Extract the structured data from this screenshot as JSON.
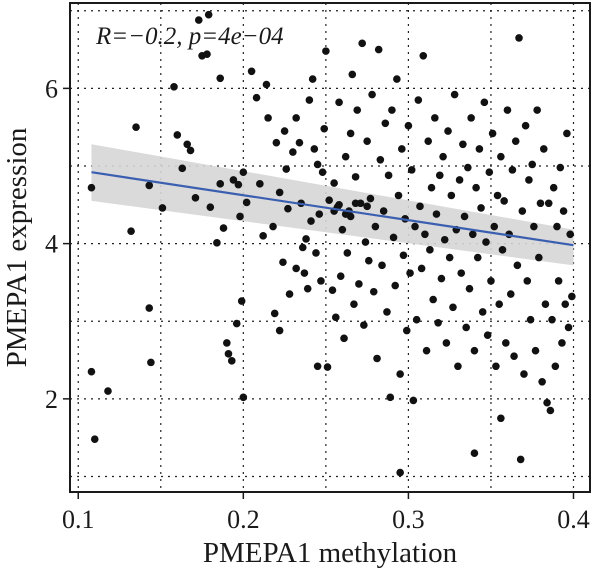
{
  "chart_data": {
    "type": "scatter",
    "title": "",
    "xlabel": "PMEPA1 methylation",
    "ylabel": "PMEPA1 expression",
    "annotation": "R=−0.2, p=4e−04",
    "xlim": [
      0.095,
      0.41
    ],
    "ylim": [
      0.8,
      7.1
    ],
    "xticks": [
      0.1,
      0.2,
      0.3,
      0.4
    ],
    "xtick_labels": [
      "0.1",
      "0.2",
      "0.3",
      "0.4"
    ],
    "yticks": [
      2,
      4,
      6
    ],
    "ytick_labels": [
      "2",
      "4",
      "6"
    ],
    "grid": true,
    "grid_style": "dotted",
    "legend": "none",
    "regression": {
      "x": [
        0.108,
        0.4
      ],
      "y": [
        4.92,
        3.98
      ],
      "ci_upper": [
        5.28,
        4.18
      ],
      "ci_lower": [
        4.55,
        3.72
      ],
      "line_color": "#3b5fb0",
      "band_color": "#d6d6d6"
    },
    "point_color": "#111111",
    "points": [
      [
        0.108,
        2.35
      ],
      [
        0.11,
        1.48
      ],
      [
        0.118,
        2.1
      ],
      [
        0.108,
        4.72
      ],
      [
        0.132,
        4.16
      ],
      [
        0.135,
        5.5
      ],
      [
        0.143,
        4.75
      ],
      [
        0.143,
        3.17
      ],
      [
        0.144,
        2.47
      ],
      [
        0.151,
        4.46
      ],
      [
        0.158,
        6.02
      ],
      [
        0.16,
        5.4
      ],
      [
        0.163,
        4.97
      ],
      [
        0.166,
        5.28
      ],
      [
        0.168,
        5.2
      ],
      [
        0.171,
        4.59
      ],
      [
        0.173,
        6.88
      ],
      [
        0.175,
        6.42
      ],
      [
        0.178,
        6.44
      ],
      [
        0.179,
        6.95
      ],
      [
        0.18,
        4.47
      ],
      [
        0.184,
        4.01
      ],
      [
        0.186,
        6.13
      ],
      [
        0.186,
        4.77
      ],
      [
        0.188,
        4.2
      ],
      [
        0.19,
        2.72
      ],
      [
        0.191,
        2.58
      ],
      [
        0.193,
        2.49
      ],
      [
        0.194,
        4.82
      ],
      [
        0.196,
        2.97
      ],
      [
        0.197,
        4.76
      ],
      [
        0.198,
        4.35
      ],
      [
        0.199,
        3.26
      ],
      [
        0.2,
        2.02
      ],
      [
        0.2,
        4.92
      ],
      [
        0.202,
        4.53
      ],
      [
        0.205,
        6.22
      ],
      [
        0.208,
        5.88
      ],
      [
        0.21,
        4.77
      ],
      [
        0.212,
        4.1
      ],
      [
        0.214,
        6.05
      ],
      [
        0.215,
        5.62
      ],
      [
        0.218,
        4.22
      ],
      [
        0.219,
        3.1
      ],
      [
        0.22,
        5.3
      ],
      [
        0.222,
        2.88
      ],
      [
        0.222,
        4.66
      ],
      [
        0.224,
        3.76
      ],
      [
        0.225,
        5.45
      ],
      [
        0.226,
        4.96
      ],
      [
        0.227,
        4.45
      ],
      [
        0.228,
        3.35
      ],
      [
        0.23,
        5.18
      ],
      [
        0.232,
        5.62
      ],
      [
        0.232,
        3.68
      ],
      [
        0.234,
        5.3
      ],
      [
        0.235,
        4.52
      ],
      [
        0.236,
        3.95
      ],
      [
        0.237,
        3.62
      ],
      [
        0.238,
        4.06
      ],
      [
        0.239,
        3.42
      ],
      [
        0.24,
        5.85
      ],
      [
        0.241,
        4.29
      ],
      [
        0.242,
        6.12
      ],
      [
        0.243,
        5.22
      ],
      [
        0.244,
        3.88
      ],
      [
        0.245,
        5.02
      ],
      [
        0.246,
        4.38
      ],
      [
        0.247,
        3.52
      ],
      [
        0.248,
        4.92
      ],
      [
        0.249,
        5.48
      ],
      [
        0.25,
        6.48
      ],
      [
        0.251,
        2.41
      ],
      [
        0.252,
        4.56
      ],
      [
        0.254,
        3.4
      ],
      [
        0.255,
        4.78
      ],
      [
        0.256,
        3.05
      ],
      [
        0.257,
        4.47
      ],
      [
        0.258,
        5.82
      ],
      [
        0.259,
        3.58
      ],
      [
        0.26,
        4.18
      ],
      [
        0.261,
        2.78
      ],
      [
        0.262,
        5.12
      ],
      [
        0.263,
        3.88
      ],
      [
        0.264,
        4.42
      ],
      [
        0.265,
        5.42
      ],
      [
        0.266,
        6.18
      ],
      [
        0.267,
        3.22
      ],
      [
        0.268,
        4.86
      ],
      [
        0.269,
        5.72
      ],
      [
        0.27,
        3.48
      ],
      [
        0.271,
        4.52
      ],
      [
        0.272,
        6.58
      ],
      [
        0.273,
        2.95
      ],
      [
        0.274,
        4.02
      ],
      [
        0.275,
        5.32
      ],
      [
        0.276,
        3.78
      ],
      [
        0.277,
        4.58
      ],
      [
        0.278,
        5.92
      ],
      [
        0.279,
        3.38
      ],
      [
        0.28,
        4.22
      ],
      [
        0.281,
        2.52
      ],
      [
        0.282,
        6.5
      ],
      [
        0.283,
        5.08
      ],
      [
        0.284,
        3.72
      ],
      [
        0.285,
        4.42
      ],
      [
        0.286,
        5.55
      ],
      [
        0.287,
        3.12
      ],
      [
        0.288,
        4.88
      ],
      [
        0.289,
        2.02
      ],
      [
        0.29,
        5.72
      ],
      [
        0.291,
        4.08
      ],
      [
        0.292,
        3.46
      ],
      [
        0.293,
        6.12
      ],
      [
        0.294,
        4.62
      ],
      [
        0.295,
        2.32
      ],
      [
        0.296,
        5.22
      ],
      [
        0.297,
        3.85
      ],
      [
        0.298,
        4.32
      ],
      [
        0.299,
        2.88
      ],
      [
        0.3,
        5.52
      ],
      [
        0.301,
        3.62
      ],
      [
        0.302,
        4.95
      ],
      [
        0.303,
        1.98
      ],
      [
        0.304,
        4.22
      ],
      [
        0.305,
        3.02
      ],
      [
        0.306,
        5.85
      ],
      [
        0.307,
        4.48
      ],
      [
        0.308,
        3.68
      ],
      [
        0.309,
        6.42
      ],
      [
        0.31,
        4.12
      ],
      [
        0.311,
        2.62
      ],
      [
        0.312,
        5.32
      ],
      [
        0.313,
        3.92
      ],
      [
        0.314,
        4.72
      ],
      [
        0.315,
        3.28
      ],
      [
        0.316,
        5.62
      ],
      [
        0.317,
        4.38
      ],
      [
        0.318,
        2.98
      ],
      [
        0.319,
        4.88
      ],
      [
        0.32,
        3.55
      ],
      [
        0.321,
        5.12
      ],
      [
        0.322,
        4.05
      ],
      [
        0.323,
        2.72
      ],
      [
        0.324,
        5.45
      ],
      [
        0.325,
        3.82
      ],
      [
        0.326,
        4.62
      ],
      [
        0.327,
        3.18
      ],
      [
        0.328,
        5.92
      ],
      [
        0.329,
        4.18
      ],
      [
        0.33,
        2.42
      ],
      [
        0.331,
        4.82
      ],
      [
        0.332,
        3.62
      ],
      [
        0.333,
        5.28
      ],
      [
        0.334,
        4.35
      ],
      [
        0.335,
        2.92
      ],
      [
        0.336,
        4.98
      ],
      [
        0.337,
        3.42
      ],
      [
        0.338,
        5.62
      ],
      [
        0.339,
        4.12
      ],
      [
        0.34,
        2.62
      ],
      [
        0.341,
        4.72
      ],
      [
        0.342,
        3.82
      ],
      [
        0.343,
        5.22
      ],
      [
        0.344,
        4.46
      ],
      [
        0.345,
        3.12
      ],
      [
        0.346,
        5.82
      ],
      [
        0.347,
        4.02
      ],
      [
        0.348,
        2.82
      ],
      [
        0.349,
        4.92
      ],
      [
        0.35,
        3.52
      ],
      [
        0.351,
        5.42
      ],
      [
        0.352,
        4.22
      ],
      [
        0.353,
        2.42
      ],
      [
        0.354,
        4.62
      ],
      [
        0.355,
        3.22
      ],
      [
        0.356,
        5.12
      ],
      [
        0.357,
        3.92
      ],
      [
        0.358,
        4.55
      ],
      [
        0.359,
        2.72
      ],
      [
        0.36,
        5.72
      ],
      [
        0.361,
        4.12
      ],
      [
        0.362,
        3.35
      ],
      [
        0.363,
        4.95
      ],
      [
        0.364,
        2.55
      ],
      [
        0.365,
        5.32
      ],
      [
        0.366,
        3.72
      ],
      [
        0.367,
        6.65
      ],
      [
        0.368,
        1.22
      ],
      [
        0.369,
        4.42
      ],
      [
        0.37,
        2.32
      ],
      [
        0.371,
        5.52
      ],
      [
        0.372,
        3.52
      ],
      [
        0.373,
        4.82
      ],
      [
        0.374,
        3.02
      ],
      [
        0.375,
        5.02
      ],
      [
        0.376,
        4.22
      ],
      [
        0.377,
        2.62
      ],
      [
        0.378,
        5.72
      ],
      [
        0.379,
        3.82
      ],
      [
        0.38,
        4.52
      ],
      [
        0.381,
        2.22
      ],
      [
        0.382,
        5.22
      ],
      [
        0.383,
        3.22
      ],
      [
        0.384,
        1.95
      ],
      [
        0.385,
        4.52
      ],
      [
        0.386,
        1.85
      ],
      [
        0.387,
        3.02
      ],
      [
        0.388,
        4.72
      ],
      [
        0.389,
        2.42
      ],
      [
        0.39,
        4.22
      ],
      [
        0.391,
        3.52
      ],
      [
        0.392,
        4.98
      ],
      [
        0.393,
        2.72
      ],
      [
        0.394,
        4.42
      ],
      [
        0.395,
        3.22
      ],
      [
        0.396,
        5.42
      ],
      [
        0.397,
        2.92
      ],
      [
        0.398,
        4.12
      ],
      [
        0.399,
        3.32
      ],
      [
        0.295,
        1.05
      ],
      [
        0.34,
        1.3
      ],
      [
        0.356,
        1.75
      ],
      [
        0.245,
        2.42
      ],
      [
        0.262,
        4.38
      ],
      [
        0.275,
        4.48
      ],
      [
        0.268,
        4.52
      ],
      [
        0.255,
        4.42
      ],
      [
        0.258,
        4.5
      ],
      [
        0.265,
        4.35
      ]
    ]
  }
}
